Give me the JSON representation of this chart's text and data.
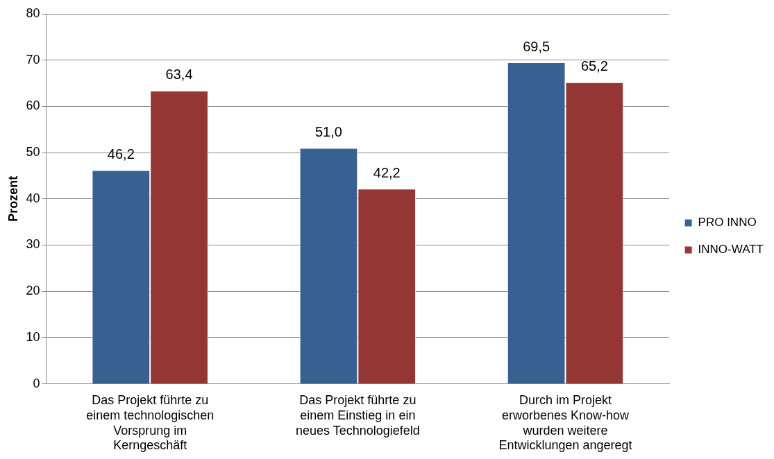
{
  "chart_data": {
    "type": "bar",
    "ylabel": "Prozent",
    "categories": [
      "Das Projekt führte zu einem technologischen Vorsprung im Kerngeschäft",
      "Das Projekt führte zu einem Einstieg in ein neues Technologiefeld",
      "Durch im Projekt erworbenes Know-how wurden weitere Entwicklungen angeregt"
    ],
    "series": [
      {
        "name": "PRO INNO",
        "color": "#386192",
        "values": [
          46.2,
          51.0,
          69.5
        ],
        "value_labels": [
          "46,2",
          "51,0",
          "69,5"
        ]
      },
      {
        "name": "INNO-WATT",
        "color": "#943634",
        "values": [
          63.4,
          42.2,
          65.2
        ],
        "value_labels": [
          "63,4",
          "42,2",
          "65,2"
        ]
      }
    ],
    "ylim": [
      0,
      80
    ],
    "yticks": [
      0,
      10,
      20,
      30,
      40,
      50,
      60,
      70,
      80
    ],
    "grid": "y",
    "legend": "right"
  }
}
